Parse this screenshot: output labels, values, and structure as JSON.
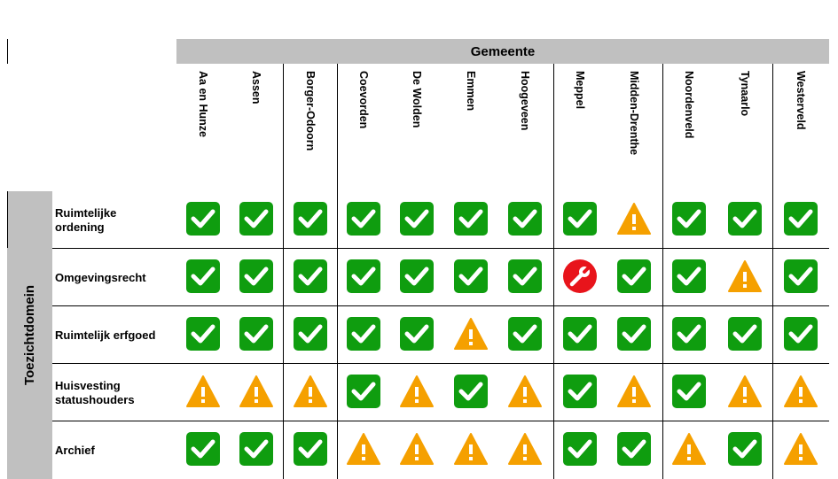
{
  "header": {
    "title": "Gemeente"
  },
  "side": {
    "title": "Toezichtdomein"
  },
  "colors": {
    "ok": "#0f9d0f",
    "warn": "#f5a000",
    "error": "#e8141b",
    "header_bg": "#c0c0c0"
  },
  "columns": [
    "Aa en Hunze",
    "Assen",
    "Borger-Odoorn",
    "Coevorden",
    "De Wolden",
    "Emmen",
    "Hoogeveen",
    "Meppel",
    "Midden-Drenthe",
    "Noordenveld",
    "Tynaarlo",
    "Westerveld"
  ],
  "rows": [
    {
      "label": "Ruimtelijke ordening",
      "status": [
        "ok",
        "ok",
        "ok",
        "ok",
        "ok",
        "ok",
        "ok",
        "ok",
        "warn",
        "ok",
        "ok",
        "ok"
      ]
    },
    {
      "label": "Omgevingsrecht",
      "status": [
        "ok",
        "ok",
        "ok",
        "ok",
        "ok",
        "ok",
        "ok",
        "error",
        "ok",
        "ok",
        "warn",
        "ok"
      ]
    },
    {
      "label": "Ruimtelijk erfgoed",
      "status": [
        "ok",
        "ok",
        "ok",
        "ok",
        "ok",
        "warn",
        "ok",
        "ok",
        "ok",
        "ok",
        "ok",
        "ok"
      ]
    },
    {
      "label": "Huisvesting statushouders",
      "status": [
        "warn",
        "warn",
        "warn",
        "ok",
        "warn",
        "ok",
        "warn",
        "ok",
        "warn",
        "ok",
        "warn",
        "warn"
      ]
    },
    {
      "label": "Archief",
      "status": [
        "ok",
        "ok",
        "ok",
        "warn",
        "warn",
        "warn",
        "warn",
        "ok",
        "ok",
        "warn",
        "ok",
        "warn"
      ]
    }
  ],
  "icons": {
    "ok": "check-icon",
    "warn": "warning-icon",
    "error": "wrench-icon"
  }
}
